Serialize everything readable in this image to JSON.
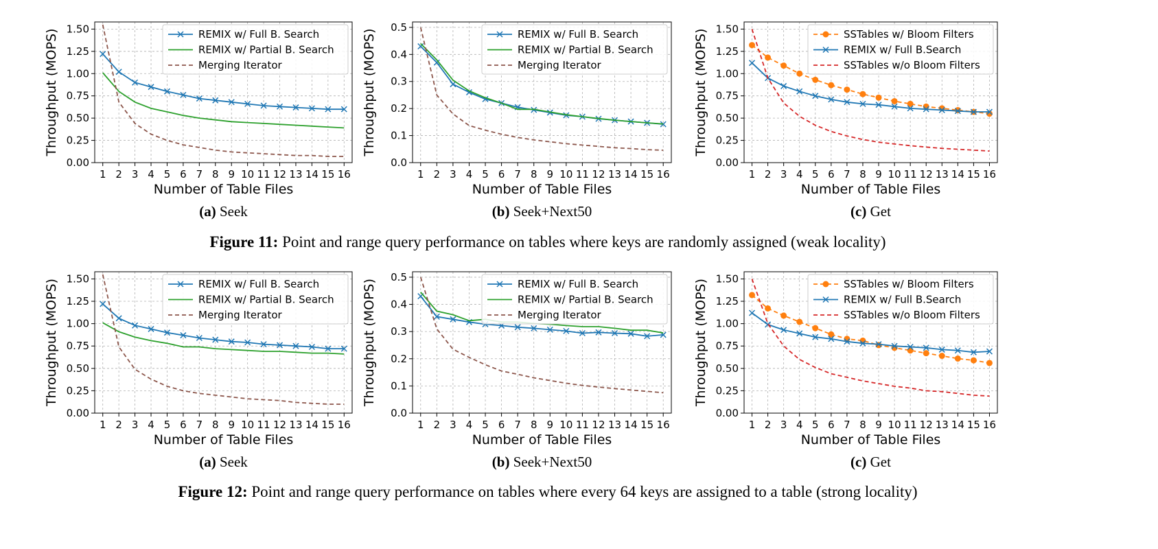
{
  "figures": [
    {
      "caption_label": "Figure 11:",
      "caption_text": " Point and range query performance on tables where keys are randomly assigned (weak locality)"
    },
    {
      "caption_label": "Figure 12:",
      "caption_text": " Point and range query performance on tables where every 64 keys are assigned to a table (strong locality)"
    }
  ],
  "chart_data": [
    {
      "figure": 11,
      "panel": "(a)",
      "subtitle": "Seek",
      "type": "line",
      "xlabel": "Number of Table Files",
      "ylabel": "Throughput (MOPS)",
      "x": [
        1,
        2,
        3,
        4,
        5,
        6,
        7,
        8,
        9,
        10,
        11,
        12,
        13,
        14,
        15,
        16
      ],
      "ylim": [
        0,
        1.58
      ],
      "yticks": [
        "0.00",
        "0.25",
        "0.50",
        "0.75",
        "1.00",
        "1.25",
        "1.50"
      ],
      "grid": true,
      "legend": "top-right",
      "series": [
        {
          "name": "REMIX w/ Full B. Search",
          "color": "#1f77b4",
          "style": "solid",
          "marker": "x",
          "values": [
            1.22,
            1.02,
            0.9,
            0.85,
            0.8,
            0.76,
            0.72,
            0.7,
            0.68,
            0.66,
            0.64,
            0.63,
            0.62,
            0.61,
            0.6,
            0.6
          ]
        },
        {
          "name": "REMIX w/ Partial B. Search",
          "color": "#2ca02c",
          "style": "solid",
          "marker": "",
          "values": [
            1.01,
            0.8,
            0.68,
            0.61,
            0.57,
            0.53,
            0.5,
            0.48,
            0.46,
            0.45,
            0.44,
            0.43,
            0.42,
            0.41,
            0.4,
            0.39
          ]
        },
        {
          "name": "Merging Iterator",
          "color": "#8c564b",
          "style": "dashed",
          "marker": "",
          "values": [
            1.55,
            0.68,
            0.44,
            0.32,
            0.25,
            0.2,
            0.17,
            0.14,
            0.12,
            0.11,
            0.1,
            0.09,
            0.08,
            0.08,
            0.07,
            0.07
          ]
        }
      ]
    },
    {
      "figure": 11,
      "panel": "(b)",
      "subtitle": "Seek+Next50",
      "type": "line",
      "xlabel": "Number of Table Files",
      "ylabel": "Throughput (MOPS)",
      "x": [
        1,
        2,
        3,
        4,
        5,
        6,
        7,
        8,
        9,
        10,
        11,
        12,
        13,
        14,
        15,
        16
      ],
      "ylim": [
        0,
        0.52
      ],
      "yticks": [
        "0.0",
        "0.1",
        "0.2",
        "0.3",
        "0.4",
        "0.5"
      ],
      "grid": true,
      "legend": "top-right",
      "series": [
        {
          "name": "REMIX w/ Full B. Search",
          "color": "#1f77b4",
          "style": "solid",
          "marker": "x",
          "values": [
            0.43,
            0.37,
            0.29,
            0.26,
            0.235,
            0.22,
            0.205,
            0.195,
            0.185,
            0.175,
            0.17,
            0.162,
            0.157,
            0.152,
            0.147,
            0.142
          ]
        },
        {
          "name": "REMIX w/ Partial B. Search",
          "color": "#2ca02c",
          "style": "solid",
          "marker": "",
          "values": [
            0.44,
            0.38,
            0.305,
            0.265,
            0.24,
            0.22,
            0.197,
            0.197,
            0.187,
            0.177,
            0.17,
            0.163,
            0.157,
            0.152,
            0.147,
            0.143
          ]
        },
        {
          "name": "Merging Iterator",
          "color": "#8c564b",
          "style": "dashed",
          "marker": "",
          "values": [
            0.5,
            0.25,
            0.18,
            0.137,
            0.12,
            0.105,
            0.093,
            0.084,
            0.077,
            0.07,
            0.065,
            0.06,
            0.055,
            0.052,
            0.048,
            0.046
          ]
        }
      ]
    },
    {
      "figure": 11,
      "panel": "(c)",
      "subtitle": "Get",
      "type": "line",
      "xlabel": "Number of Table Files",
      "ylabel": "Throughput (MOPS)",
      "x": [
        1,
        2,
        3,
        4,
        5,
        6,
        7,
        8,
        9,
        10,
        11,
        12,
        13,
        14,
        15,
        16
      ],
      "ylim": [
        0,
        1.58
      ],
      "yticks": [
        "0.00",
        "0.25",
        "0.50",
        "0.75",
        "1.00",
        "1.25",
        "1.50"
      ],
      "grid": true,
      "legend": "top-right",
      "series": [
        {
          "name": "SSTables w/ Bloom Filters",
          "color": "#ff7f0e",
          "style": "dashed",
          "marker": "o",
          "values": [
            1.32,
            1.18,
            1.09,
            1.0,
            0.93,
            0.87,
            0.82,
            0.77,
            0.73,
            0.69,
            0.66,
            0.63,
            0.61,
            0.59,
            0.57,
            0.55
          ]
        },
        {
          "name": "REMIX w/ Full B.Search",
          "color": "#1f77b4",
          "style": "solid",
          "marker": "x",
          "values": [
            1.12,
            0.95,
            0.86,
            0.8,
            0.75,
            0.71,
            0.68,
            0.66,
            0.65,
            0.63,
            0.61,
            0.6,
            0.59,
            0.58,
            0.57,
            0.57
          ]
        },
        {
          "name": "SSTables w/o Bloom Filters",
          "color": "#d62728",
          "style": "dashed",
          "marker": "",
          "values": [
            1.5,
            0.95,
            0.67,
            0.52,
            0.42,
            0.35,
            0.3,
            0.26,
            0.23,
            0.21,
            0.19,
            0.175,
            0.16,
            0.15,
            0.14,
            0.13
          ]
        }
      ]
    },
    {
      "figure": 12,
      "panel": "(a)",
      "subtitle": "Seek",
      "type": "line",
      "xlabel": "Number of Table Files",
      "ylabel": "Throughput (MOPS)",
      "x": [
        1,
        2,
        3,
        4,
        5,
        6,
        7,
        8,
        9,
        10,
        11,
        12,
        13,
        14,
        15,
        16
      ],
      "ylim": [
        0,
        1.58
      ],
      "yticks": [
        "0.00",
        "0.25",
        "0.50",
        "0.75",
        "1.00",
        "1.25",
        "1.50"
      ],
      "grid": true,
      "legend": "top-right",
      "series": [
        {
          "name": "REMIX w/ Full B. Search",
          "color": "#1f77b4",
          "style": "solid",
          "marker": "x",
          "values": [
            1.22,
            1.06,
            0.98,
            0.94,
            0.9,
            0.87,
            0.84,
            0.82,
            0.8,
            0.79,
            0.77,
            0.76,
            0.75,
            0.74,
            0.72,
            0.72
          ]
        },
        {
          "name": "REMIX w/ Partial B. Search",
          "color": "#2ca02c",
          "style": "solid",
          "marker": "",
          "values": [
            1.01,
            0.91,
            0.85,
            0.81,
            0.78,
            0.74,
            0.74,
            0.72,
            0.71,
            0.7,
            0.69,
            0.69,
            0.68,
            0.67,
            0.67,
            0.66
          ]
        },
        {
          "name": "Merging Iterator",
          "color": "#8c564b",
          "style": "dashed",
          "marker": "",
          "values": [
            1.55,
            0.74,
            0.49,
            0.38,
            0.3,
            0.25,
            0.22,
            0.2,
            0.18,
            0.16,
            0.15,
            0.14,
            0.12,
            0.11,
            0.1,
            0.1
          ]
        }
      ]
    },
    {
      "figure": 12,
      "panel": "(b)",
      "subtitle": "Seek+Next50",
      "type": "line",
      "xlabel": "Number of Table Files",
      "ylabel": "Throughput (MOPS)",
      "x": [
        1,
        2,
        3,
        4,
        5,
        6,
        7,
        8,
        9,
        10,
        11,
        12,
        13,
        14,
        15,
        16
      ],
      "ylim": [
        0,
        0.52
      ],
      "yticks": [
        "0.0",
        "0.1",
        "0.2",
        "0.3",
        "0.4",
        "0.5"
      ],
      "grid": true,
      "legend": "top-right",
      "series": [
        {
          "name": "REMIX w/ Full B. Search",
          "color": "#1f77b4",
          "style": "solid",
          "marker": "x",
          "values": [
            0.43,
            0.355,
            0.345,
            0.335,
            0.327,
            0.322,
            0.316,
            0.312,
            0.307,
            0.302,
            0.294,
            0.297,
            0.294,
            0.292,
            0.283,
            0.288
          ]
        },
        {
          "name": "REMIX w/ Partial B. Search",
          "color": "#2ca02c",
          "style": "solid",
          "marker": "",
          "values": [
            0.445,
            0.375,
            0.362,
            0.34,
            0.345,
            0.335,
            0.335,
            0.33,
            0.327,
            0.322,
            0.318,
            0.318,
            0.312,
            0.305,
            0.305,
            0.295
          ]
        },
        {
          "name": "Merging Iterator",
          "color": "#8c564b",
          "style": "dashed",
          "marker": "",
          "values": [
            0.5,
            0.31,
            0.235,
            0.205,
            0.178,
            0.155,
            0.143,
            0.13,
            0.12,
            0.11,
            0.102,
            0.096,
            0.09,
            0.085,
            0.08,
            0.075
          ]
        }
      ]
    },
    {
      "figure": 12,
      "panel": "(c)",
      "subtitle": "Get",
      "type": "line",
      "xlabel": "Number of Table Files",
      "ylabel": "Throughput (MOPS)",
      "x": [
        1,
        2,
        3,
        4,
        5,
        6,
        7,
        8,
        9,
        10,
        11,
        12,
        13,
        14,
        15,
        16
      ],
      "ylim": [
        0,
        1.58
      ],
      "yticks": [
        "0.00",
        "0.25",
        "0.50",
        "0.75",
        "1.00",
        "1.25",
        "1.50"
      ],
      "grid": true,
      "legend": "top-right",
      "series": [
        {
          "name": "SSTables w/ Bloom Filters",
          "color": "#ff7f0e",
          "style": "dashed",
          "marker": "o",
          "values": [
            1.32,
            1.17,
            1.09,
            1.02,
            0.95,
            0.88,
            0.83,
            0.81,
            0.76,
            0.73,
            0.7,
            0.67,
            0.64,
            0.61,
            0.59,
            0.56
          ]
        },
        {
          "name": "REMIX w/ Full B.Search",
          "color": "#1f77b4",
          "style": "solid",
          "marker": "x",
          "values": [
            1.12,
            0.99,
            0.93,
            0.89,
            0.85,
            0.83,
            0.8,
            0.78,
            0.77,
            0.75,
            0.74,
            0.73,
            0.71,
            0.7,
            0.68,
            0.69
          ]
        },
        {
          "name": "SSTables w/o Bloom Filters",
          "color": "#d62728",
          "style": "dashed",
          "marker": "",
          "values": [
            1.5,
            1.0,
            0.75,
            0.6,
            0.51,
            0.44,
            0.4,
            0.36,
            0.33,
            0.3,
            0.28,
            0.25,
            0.24,
            0.22,
            0.2,
            0.19
          ]
        }
      ]
    }
  ]
}
